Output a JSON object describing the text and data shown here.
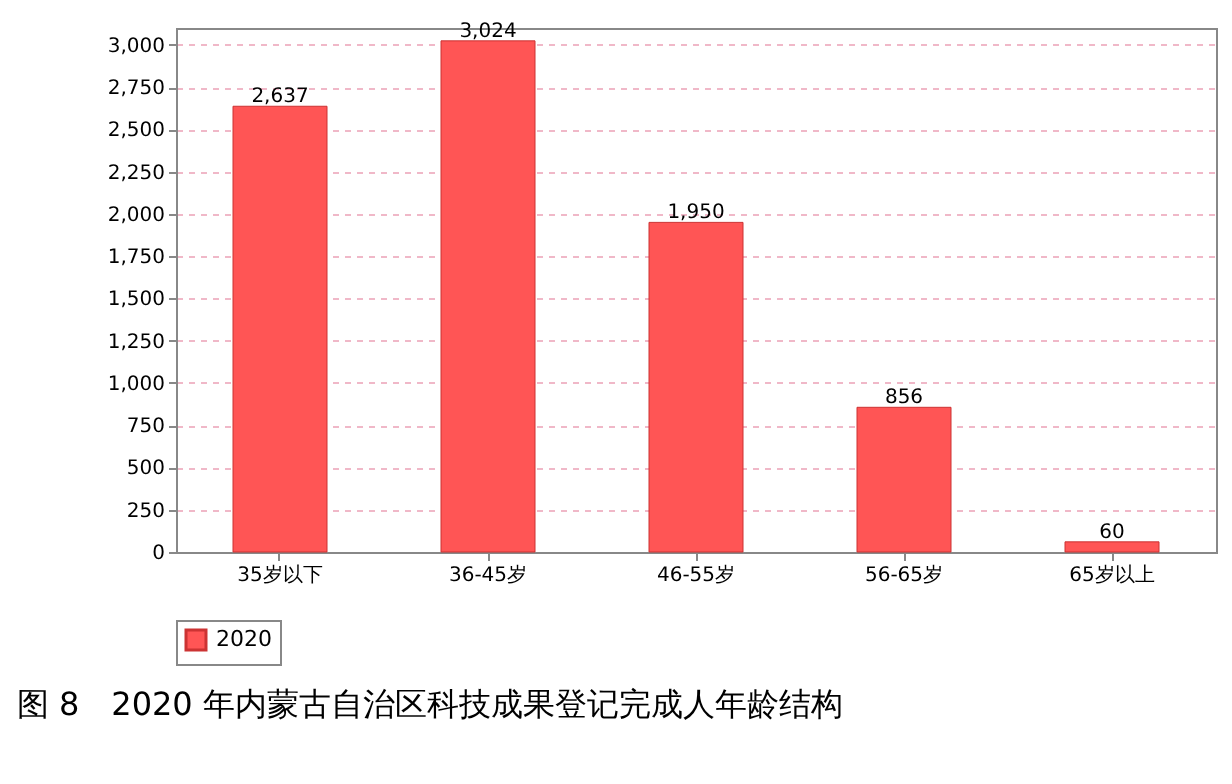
{
  "chart_data": {
    "type": "bar",
    "title": "图 8　2020 年内蒙古自治区科技成果登记完成人年龄结构",
    "categories": [
      "35岁以下",
      "36-45岁",
      "46-55岁",
      "56-65岁",
      "65岁以上"
    ],
    "series": [
      {
        "name": "2020",
        "color": "#ff5555",
        "values": [
          2637,
          3024,
          1950,
          856,
          60
        ],
        "value_labels": [
          "2,637",
          "3,024",
          "1,950",
          "856",
          "60"
        ]
      }
    ],
    "ylim": [
      0,
      3100
    ],
    "yticks": [
      0,
      250,
      500,
      750,
      {
        "value": 1000,
        "label": "1,000"
      },
      {
        "value": 1250,
        "label": "1,250"
      },
      {
        "value": 1500,
        "label": "1,500"
      },
      {
        "value": 1750,
        "label": "1,750"
      },
      {
        "value": 2000,
        "label": "2,000"
      },
      {
        "value": 2250,
        "label": "2,250"
      },
      {
        "value": 2500,
        "label": "2,500"
      },
      {
        "value": 2750,
        "label": "2,750"
      },
      {
        "value": 3000,
        "label": "3,000"
      }
    ],
    "grid": "y",
    "legend": "bottom"
  }
}
